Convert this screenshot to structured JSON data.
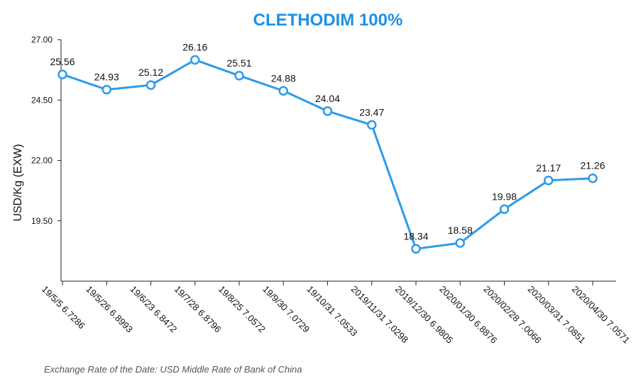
{
  "colors": {
    "line": "#2d9be8",
    "title": "#1e90e6",
    "axis": "#222222"
  },
  "chart_data": {
    "type": "line",
    "title": "CLETHODIM 100%",
    "ylabel": "USD/Kg   (EXW)",
    "ylim": [
      17.0,
      27.0
    ],
    "yticks": [
      "27.00",
      "24.50",
      "22.00",
      "19.50"
    ],
    "ytick_values": [
      27.0,
      24.5,
      22.0,
      19.5
    ],
    "grid": false,
    "categories": [
      "19/5/5 6.7286",
      "19/5/26 6.8993",
      "19/6/23 6.8472",
      "19/7/28 6.8796",
      "19/8/25 7.0572",
      "19/9/30 7.0729",
      "19/10/31 7.0533",
      "2019/11/31 7.0298",
      "2019/12/30 6.9805",
      "2020/01/30 6.8876",
      "2020/02/28 7.0066",
      "2020/03/31 7.0851",
      "2020/04/30 7.0571"
    ],
    "values": [
      25.56,
      24.93,
      25.12,
      26.16,
      25.51,
      24.88,
      24.04,
      23.47,
      18.34,
      18.58,
      19.98,
      21.17,
      21.26
    ],
    "labels": [
      "25.56",
      "24.93",
      "25.12",
      "26.16",
      "25.51",
      "24.88",
      "24.04",
      "23.47",
      "18.34",
      "18.58",
      "19.98",
      "21.17",
      "21.26"
    ],
    "footnote": "Exchange Rate of the Date: USD Middle Rate of Bank of China"
  }
}
